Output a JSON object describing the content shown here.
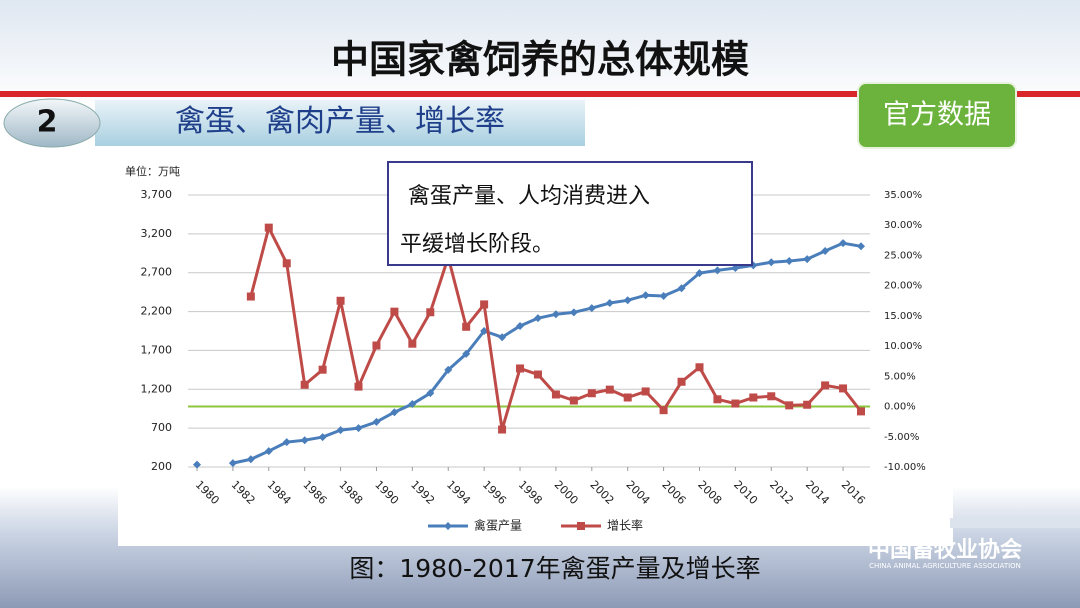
{
  "header": {
    "title": "中国家禽饲养的总体规模",
    "section_number": "2",
    "section_title": "禽蛋、禽肉产量、增长率",
    "badge": "官方数据"
  },
  "caption": "图：1980-2017年禽蛋产量及增长率",
  "logo": {
    "name": "中国畜牧业协会",
    "english": "CHINA ANIMAL AGRICULTURE ASSOCIATION"
  },
  "chart_data": {
    "type": "line",
    "unit_label": "单位：万吨",
    "annotation": [
      "禽蛋产量、人均消费进入",
      "平缓增长阶段。"
    ],
    "x": [
      1980,
      1981,
      1982,
      1983,
      1984,
      1985,
      1986,
      1987,
      1988,
      1989,
      1990,
      1991,
      1992,
      1993,
      1994,
      1995,
      1996,
      1997,
      1998,
      1999,
      2000,
      2001,
      2002,
      2003,
      2004,
      2005,
      2006,
      2007,
      2008,
      2009,
      2010,
      2011,
      2012,
      2013,
      2014,
      2015,
      2016,
      2017
    ],
    "xlim": [
      1980,
      2017
    ],
    "xticks": [
      1980,
      1982,
      1984,
      1986,
      1988,
      1990,
      1992,
      1994,
      1996,
      1998,
      2000,
      2002,
      2004,
      2006,
      2008,
      2010,
      2012,
      2014,
      2016
    ],
    "ylim": [
      200,
      3700
    ],
    "yticks": [
      200,
      700,
      {
        "value": 1200,
        "label": "1,200"
      },
      {
        "value": 1700,
        "label": "1,700"
      },
      {
        "value": 2200,
        "label": "2,200"
      },
      {
        "value": 2700,
        "label": "2,700"
      },
      {
        "value": 3200,
        "label": "3,200"
      },
      {
        "value": 3700,
        "label": "3,700"
      }
    ],
    "y2lim": [
      -10,
      35
    ],
    "y2ticks": [
      {
        "value": -10,
        "label": "-10.00%"
      },
      {
        "value": -5,
        "label": "-5.00%"
      },
      {
        "value": 0,
        "label": "0.00%"
      },
      {
        "value": 5,
        "label": "5.00%"
      },
      {
        "value": 10,
        "label": "10.00%"
      },
      {
        "value": 15,
        "label": "15.00%"
      },
      {
        "value": 20,
        "label": "20.00%"
      },
      {
        "value": 25,
        "label": "25.00%"
      },
      {
        "value": 30,
        "label": "30.00%"
      },
      {
        "value": 35,
        "label": "35.00%"
      }
    ],
    "grid": true,
    "zero_line_color": "#8cc63e",
    "legend": "bottom",
    "series": [
      {
        "name": "禽蛋产量",
        "color": "#4a7ebb",
        "marker": "diamond",
        "values": [
          230,
          null,
          250,
          300,
          405,
          520,
          545,
          585,
          675,
          700,
          780,
          905,
          1010,
          1150,
          1450,
          1655,
          1950,
          1870,
          2015,
          2115,
          2165,
          2190,
          2245,
          2310,
          2345,
          2410,
          2400,
          2500,
          2695,
          2730,
          2760,
          2795,
          2835,
          2850,
          2875,
          2980,
          3080,
          3040
        ]
      },
      {
        "name": "增长率",
        "color": "#be4b48",
        "marker": "square",
        "axis": "y2",
        "values": [
          null,
          null,
          null,
          18.2,
          29.6,
          23.7,
          3.6,
          6.1,
          17.5,
          3.3,
          10.1,
          15.7,
          10.4,
          15.6,
          24.7,
          13.2,
          16.9,
          -3.8,
          6.3,
          5.3,
          2.0,
          1.0,
          2.2,
          2.8,
          1.5,
          2.5,
          -0.6,
          4.1,
          6.5,
          1.2,
          0.5,
          1.5,
          1.7,
          0.2,
          0.3,
          3.5,
          3.0,
          -0.8
        ]
      }
    ]
  }
}
